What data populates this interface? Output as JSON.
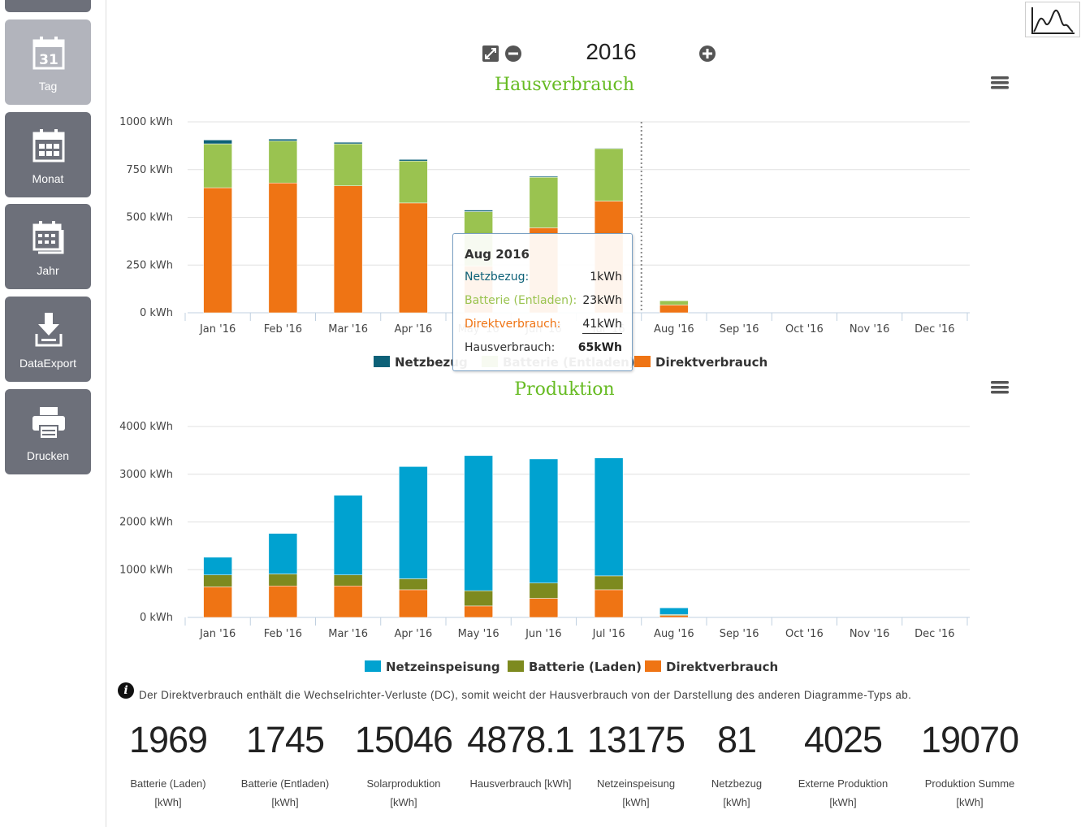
{
  "sidebar": {
    "items": [
      {
        "label": "Tag",
        "icon": "calendar-day-icon",
        "day": "31"
      },
      {
        "label": "Monat",
        "icon": "calendar-month-icon"
      },
      {
        "label": "Jahr",
        "icon": "calendar-year-icon"
      },
      {
        "label": "DataExport",
        "icon": "download-icon"
      },
      {
        "label": "Drucken",
        "icon": "printer-icon"
      }
    ]
  },
  "toolbar": {
    "year": "2016"
  },
  "colors": {
    "netzbezug": "#0d6178",
    "batterie_entladen": "#9ac350",
    "direktverbrauch": "#ef7414",
    "netzeinspeisung": "#00a2d0",
    "batterie_laden": "#7d8a1f",
    "title_green": "#66bb22"
  },
  "chart_data": [
    {
      "type": "bar",
      "title": "Hausverbrauch",
      "stacked": true,
      "categories": [
        "Jan '16",
        "Feb '16",
        "Mar '16",
        "Apr '16",
        "May '16",
        "Jun '16",
        "Jul '16",
        "Aug '16",
        "Sep '16",
        "Oct '16",
        "Nov '16",
        "Dec '16"
      ],
      "y_ticks": [
        "0 kWh",
        "250 kWh",
        "500 kWh",
        "750 kWh",
        "1000 kWh"
      ],
      "ylim": [
        0,
        1000
      ],
      "series": [
        {
          "name": "Direktverbrauch",
          "values": [
            655,
            680,
            665,
            575,
            245,
            445,
            585,
            41,
            0,
            0,
            0,
            0
          ]
        },
        {
          "name": "Batterie (Entladen)",
          "values": [
            230,
            220,
            220,
            220,
            285,
            265,
            275,
            23,
            0,
            0,
            0,
            0
          ]
        },
        {
          "name": "Netzbezug",
          "values": [
            20,
            10,
            8,
            8,
            8,
            5,
            3,
            1,
            0,
            0,
            0,
            0
          ]
        }
      ],
      "legend": [
        "Netzbezug",
        "Batterie (Entladen)",
        "Direktverbrauch"
      ],
      "crosshair_category": "Aug '16"
    },
    {
      "type": "bar",
      "title": "Produktion",
      "stacked": true,
      "categories": [
        "Jan '16",
        "Feb '16",
        "Mar '16",
        "Apr '16",
        "May '16",
        "Jun '16",
        "Jul '16",
        "Aug '16",
        "Sep '16",
        "Oct '16",
        "Nov '16",
        "Dec '16"
      ],
      "y_ticks": [
        "0 kWh",
        "1000 kWh",
        "2000 kWh",
        "3000 kWh",
        "4000 kWh"
      ],
      "ylim": [
        0,
        4000
      ],
      "series": [
        {
          "name": "Direktverbrauch",
          "values": [
            640,
            660,
            660,
            580,
            240,
            400,
            580,
            40,
            0,
            0,
            0,
            0
          ]
        },
        {
          "name": "Batterie (Laden)",
          "values": [
            250,
            250,
            230,
            230,
            320,
            320,
            290,
            20,
            0,
            0,
            0,
            0
          ]
        },
        {
          "name": "Netzeinspeisung",
          "values": [
            370,
            850,
            1670,
            2350,
            2830,
            2600,
            2470,
            140,
            0,
            0,
            0,
            0
          ]
        }
      ],
      "legend": [
        "Netzeinspeisung",
        "Batterie (Laden)",
        "Direktverbrauch"
      ]
    }
  ],
  "tooltip": {
    "title": "Aug 2016",
    "rows": [
      {
        "label": "Netzbezug:",
        "value": "1kWh"
      },
      {
        "label": "Batterie (Entladen):",
        "value": "23kWh"
      },
      {
        "label": "Direktverbrauch:",
        "value": "41kWh"
      },
      {
        "label": "Hausverbrauch:",
        "value": "65kWh"
      }
    ]
  },
  "info_text": "Der Direktverbrauch enthält die Wechselrichter-Verluste (DC), somit weicht der Hausverbrauch von der Darstellung des anderen Diagramme-Typs ab.",
  "stats": [
    {
      "value": "1969",
      "label": "Batterie (Laden)",
      "unit": "[kWh]"
    },
    {
      "value": "1745",
      "label": "Batterie (Entladen)",
      "unit": "[kWh]"
    },
    {
      "value": "15046",
      "label": "Solarproduktion",
      "unit": "[kWh]"
    },
    {
      "value": "4878.1",
      "label": "Hausverbrauch [kWh]",
      "unit": ""
    },
    {
      "value": "13175",
      "label": "Netzeinspeisung",
      "unit": "[kWh]"
    },
    {
      "value": "81",
      "label": "Netzbezug",
      "unit": "[kWh]"
    },
    {
      "value": "4025",
      "label": "Externe Produktion",
      "unit": "[kWh]"
    },
    {
      "value": "19070",
      "label": "Produktion Summe",
      "unit": "[kWh]"
    }
  ]
}
